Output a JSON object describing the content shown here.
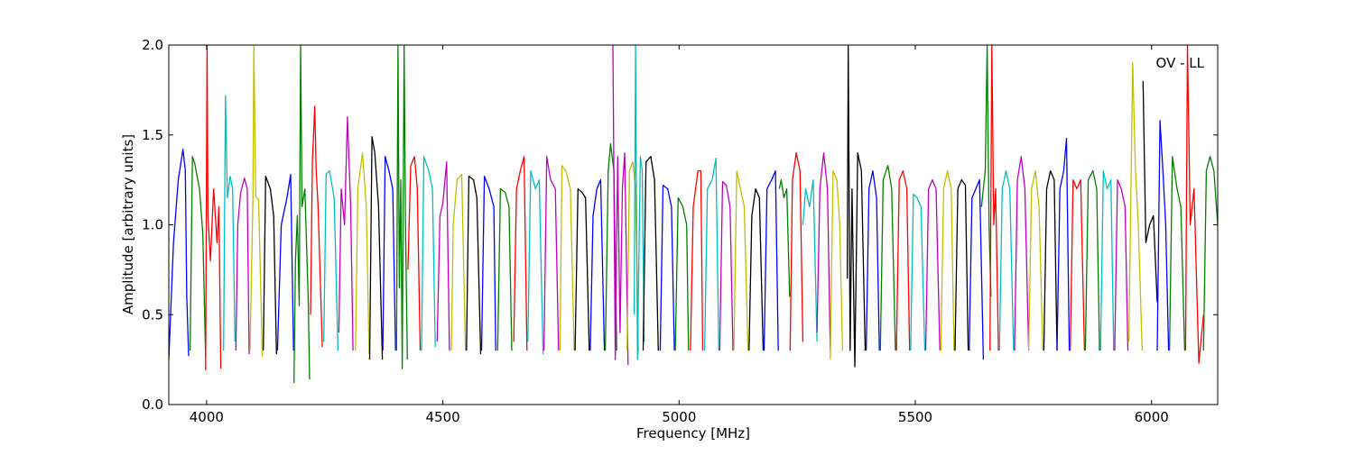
{
  "chart_data": {
    "type": "line",
    "title": "",
    "annotation": "OV - LL",
    "xlabel": "Frequency [MHz]",
    "ylabel": "Amplitude [arbitrary units]",
    "xlim": [
      3920,
      6140
    ],
    "ylim": [
      0.0,
      2.0
    ],
    "xticks": [
      4000,
      4500,
      5000,
      5500,
      6000
    ],
    "xtick_labels": [
      "4000",
      "4500",
      "5000",
      "5500",
      "6000"
    ],
    "yticks": [
      0.0,
      0.5,
      1.0,
      1.5,
      2.0
    ],
    "ytick_labels": [
      "0.0",
      "0.5",
      "1.0",
      "1.5",
      "2.0"
    ],
    "grid": false,
    "legend": "none",
    "color_cycle": [
      "#0000ff",
      "#007f00",
      "#ff0000",
      "#00bfbf",
      "#bf00bf",
      "#bfbf00",
      "#000000"
    ],
    "background_trace_color": "#c0c0c0",
    "series": [
      {
        "color": "#0000ff",
        "x": [
          3920,
          3930,
          3940,
          3950,
          3955,
          3958,
          3962
        ],
        "y": [
          0.25,
          0.9,
          1.25,
          1.42,
          1.3,
          0.6,
          0.27
        ]
      },
      {
        "color": "#007f00",
        "x": [
          3965,
          3970,
          3975,
          3985,
          3992,
          3998
        ],
        "y": [
          0.3,
          1.38,
          1.34,
          1.2,
          0.95,
          0.26
        ]
      },
      {
        "color": "#ff0000",
        "x": [
          3998,
          4001,
          4003,
          4008,
          4015,
          4022,
          4026,
          4030
        ],
        "y": [
          0.19,
          2.0,
          1.05,
          0.8,
          1.2,
          0.9,
          1.1,
          0.2
        ]
      },
      {
        "color": "#00bfbf",
        "x": [
          4036,
          4040,
          4044,
          4050,
          4055,
          4060
        ],
        "y": [
          0.3,
          1.72,
          1.15,
          1.27,
          1.2,
          0.35
        ]
      },
      {
        "color": "#bf00bf",
        "x": [
          4062,
          4066,
          4072,
          4080,
          4086,
          4090
        ],
        "y": [
          0.3,
          1.0,
          1.18,
          1.26,
          1.2,
          0.28
        ]
      },
      {
        "color": "#bfbf00",
        "x": [
          4092,
          4098,
          4100,
          4104,
          4110,
          4118
        ],
        "y": [
          0.3,
          1.15,
          2.0,
          1.16,
          1.14,
          0.27
        ]
      },
      {
        "color": "#000000",
        "x": [
          4120,
          4125,
          4135,
          4142,
          4148
        ],
        "y": [
          0.3,
          1.27,
          1.2,
          1.05,
          0.28
        ]
      },
      {
        "color": "#0000ff",
        "x": [
          4150,
          4158,
          4170,
          4178,
          4184
        ],
        "y": [
          0.3,
          1.0,
          1.15,
          1.28,
          0.3
        ]
      },
      {
        "color": "#007f00",
        "x": [
          4185,
          4188,
          4192,
          4196,
          4199,
          4202,
          4208,
          4215,
          4218
        ],
        "y": [
          0.12,
          0.8,
          1.05,
          0.55,
          2.0,
          1.1,
          1.2,
          0.6,
          0.14
        ]
      },
      {
        "color": "#ff0000",
        "x": [
          4220,
          4224,
          4229,
          4232,
          4236,
          4245
        ],
        "y": [
          0.5,
          1.35,
          1.66,
          1.3,
          1.1,
          0.32
        ]
      },
      {
        "color": "#00bfbf",
        "x": [
          4248,
          4253,
          4260,
          4270,
          4278
        ],
        "y": [
          0.35,
          1.28,
          1.3,
          1.15,
          0.3
        ]
      },
      {
        "color": "#bf00bf",
        "x": [
          4280,
          4285,
          4292,
          4298,
          4305,
          4310
        ],
        "y": [
          0.4,
          1.2,
          1.0,
          1.6,
          1.1,
          0.3
        ]
      },
      {
        "color": "#bfbf00",
        "x": [
          4315,
          4320,
          4330,
          4338,
          4344
        ],
        "y": [
          0.3,
          1.2,
          1.4,
          1.1,
          0.28
        ]
      },
      {
        "color": "#000000",
        "x": [
          4345,
          4350,
          4356,
          4364,
          4372
        ],
        "y": [
          0.25,
          1.49,
          1.4,
          1.1,
          0.25
        ]
      },
      {
        "color": "#0000ff",
        "x": [
          4373,
          4378,
          4386,
          4394,
          4400
        ],
        "y": [
          0.3,
          1.38,
          1.3,
          1.2,
          0.3
        ]
      },
      {
        "color": "#007f00",
        "x": [
          4402,
          4405,
          4408,
          4411,
          4414,
          4418,
          4421,
          4425
        ],
        "y": [
          0.3,
          2.0,
          0.65,
          1.25,
          0.2,
          2.0,
          1.0,
          0.25
        ]
      },
      {
        "color": "#ff0000",
        "x": [
          4426,
          4432,
          4440,
          4446,
          4452
        ],
        "y": [
          0.75,
          1.33,
          1.38,
          1.2,
          0.3
        ]
      },
      {
        "color": "#00bfbf",
        "x": [
          4455,
          4460,
          4470,
          4478,
          4484
        ],
        "y": [
          0.3,
          1.38,
          1.3,
          1.2,
          0.32
        ]
      },
      {
        "color": "#bf00bf",
        "x": [
          4488,
          4494,
          4500,
          4508,
          4514
        ],
        "y": [
          0.35,
          1.05,
          1.12,
          1.35,
          0.3
        ]
      },
      {
        "color": "#bfbf00",
        "x": [
          4518,
          4522,
          4530,
          4540,
          4548
        ],
        "y": [
          0.3,
          1.0,
          1.25,
          1.28,
          0.3
        ]
      },
      {
        "color": "#000000",
        "x": [
          4550,
          4555,
          4565,
          4572,
          4580
        ],
        "y": [
          0.3,
          1.27,
          1.25,
          1.15,
          0.28
        ]
      },
      {
        "color": "#0000ff",
        "x": [
          4582,
          4588,
          4598,
          4608,
          4612
        ],
        "y": [
          0.3,
          1.27,
          1.2,
          1.1,
          0.3
        ]
      },
      {
        "color": "#007f00",
        "x": [
          4616,
          4622,
          4632,
          4640,
          4646
        ],
        "y": [
          0.3,
          1.2,
          1.18,
          1.1,
          0.3
        ]
      },
      {
        "color": "#ff0000",
        "x": [
          4650,
          4656,
          4664,
          4672,
          4678
        ],
        "y": [
          0.35,
          1.2,
          1.3,
          1.38,
          0.3
        ]
      },
      {
        "color": "#00bfbf",
        "x": [
          4680,
          4686,
          4696,
          4704,
          4712
        ],
        "y": [
          0.35,
          1.3,
          1.2,
          1.25,
          0.28
        ]
      },
      {
        "color": "#bf00bf",
        "x": [
          4714,
          4720,
          4728,
          4738,
          4745
        ],
        "y": [
          0.3,
          1.38,
          1.25,
          1.2,
          0.3
        ]
      },
      {
        "color": "#bfbf00",
        "x": [
          4748,
          4752,
          4760,
          4770,
          4778
        ],
        "y": [
          0.3,
          1.33,
          1.3,
          1.2,
          0.3
        ]
      },
      {
        "color": "#000000",
        "x": [
          4780,
          4786,
          4795,
          4802,
          4810
        ],
        "y": [
          0.3,
          1.2,
          1.18,
          1.15,
          0.3
        ]
      },
      {
        "color": "#0000ff",
        "x": [
          4812,
          4818,
          4826,
          4834,
          4842
        ],
        "y": [
          0.3,
          1.05,
          1.2,
          1.25,
          0.3
        ]
      },
      {
        "color": "#007f00",
        "x": [
          4844,
          4850,
          4855,
          4862,
          4868
        ],
        "y": [
          0.3,
          1.3,
          1.45,
          1.3,
          0.3
        ]
      },
      {
        "color": "#bf00bf",
        "x": [
          4860,
          4865,
          4870,
          4875,
          4880,
          4885,
          4892
        ],
        "y": [
          2.0,
          0.25,
          1.38,
          0.4,
          1.2,
          1.4,
          0.22
        ]
      },
      {
        "color": "#bfbf00",
        "x": [
          4890,
          4895,
          4902,
          4908,
          4914
        ],
        "y": [
          0.3,
          1.3,
          1.35,
          1.2,
          0.28
        ]
      },
      {
        "color": "#00bfbf",
        "x": [
          4905,
          4908,
          4912,
          4918,
          4922,
          4926
        ],
        "y": [
          0.5,
          2.0,
          0.25,
          1.38,
          1.3,
          0.35
        ]
      },
      {
        "color": "#000000",
        "x": [
          4924,
          4930,
          4940,
          4948,
          4956
        ],
        "y": [
          0.3,
          1.35,
          1.38,
          1.25,
          0.3
        ]
      },
      {
        "color": "#0000ff",
        "x": [
          4960,
          4966,
          4976,
          4984,
          4990
        ],
        "y": [
          0.3,
          1.22,
          1.2,
          1.1,
          0.3
        ]
      },
      {
        "color": "#007f00",
        "x": [
          4992,
          4998,
          5008,
          5016,
          5020
        ],
        "y": [
          0.3,
          1.15,
          1.1,
          1.0,
          0.3
        ]
      },
      {
        "color": "#ff0000",
        "x": [
          5024,
          5030,
          5040,
          5046,
          5050
        ],
        "y": [
          0.3,
          1.1,
          1.3,
          1.3,
          0.3
        ]
      },
      {
        "color": "#00bfbf",
        "x": [
          5054,
          5060,
          5070,
          5078,
          5084
        ],
        "y": [
          0.3,
          1.2,
          1.25,
          1.37,
          0.3
        ]
      },
      {
        "color": "#bf00bf",
        "x": [
          5086,
          5092,
          5100,
          5108,
          5114
        ],
        "y": [
          0.3,
          1.24,
          1.22,
          1.1,
          0.3
        ]
      },
      {
        "color": "#bfbf00",
        "x": [
          5116,
          5122,
          5130,
          5138,
          5146
        ],
        "y": [
          0.3,
          1.3,
          1.2,
          1.1,
          0.3
        ]
      },
      {
        "color": "#000000",
        "x": [
          5148,
          5154,
          5162,
          5170,
          5178
        ],
        "y": [
          0.3,
          1.05,
          1.2,
          1.15,
          0.3
        ]
      },
      {
        "color": "#0000ff",
        "x": [
          5180,
          5186,
          5196,
          5204,
          5210
        ],
        "y": [
          0.3,
          1.2,
          1.25,
          1.3,
          0.3
        ]
      },
      {
        "color": "#007f00",
        "x": [
          5212,
          5216,
          5222,
          5228,
          5234
        ],
        "y": [
          1.2,
          1.25,
          1.15,
          1.2,
          0.6
        ]
      },
      {
        "color": "#ff0000",
        "x": [
          5235,
          5240,
          5248,
          5256,
          5262
        ],
        "y": [
          0.3,
          1.25,
          1.4,
          1.3,
          0.35
        ]
      },
      {
        "color": "#00bfbf",
        "x": [
          5262,
          5268,
          5276,
          5284,
          5292
        ],
        "y": [
          1.0,
          1.2,
          1.1,
          1.25,
          0.35
        ]
      },
      {
        "color": "#bf00bf",
        "x": [
          5292,
          5298,
          5306,
          5314,
          5320
        ],
        "y": [
          0.4,
          1.2,
          1.4,
          1.2,
          0.3
        ]
      },
      {
        "color": "#bfbf00",
        "x": [
          5320,
          5326,
          5334,
          5340,
          5346
        ],
        "y": [
          0.25,
          1.3,
          1.25,
          1.0,
          0.3
        ]
      },
      {
        "color": "#000000",
        "x": [
          5356,
          5358,
          5362,
          5366,
          5372,
          5378,
          5386,
          5394
        ],
        "y": [
          0.7,
          2.0,
          0.3,
          1.2,
          0.21,
          1.4,
          1.3,
          0.3
        ]
      },
      {
        "color": "#0000ff",
        "x": [
          5396,
          5402,
          5410,
          5418,
          5424
        ],
        "y": [
          0.3,
          1.2,
          1.3,
          1.15,
          0.3
        ]
      },
      {
        "color": "#007f00",
        "x": [
          5426,
          5432,
          5442,
          5450,
          5458
        ],
        "y": [
          0.3,
          1.25,
          1.33,
          1.2,
          0.3
        ]
      },
      {
        "color": "#ff0000",
        "x": [
          5460,
          5466,
          5474,
          5482,
          5488
        ],
        "y": [
          0.3,
          1.25,
          1.3,
          1.2,
          0.3
        ]
      },
      {
        "color": "#00bfbf",
        "x": [
          5490,
          5496,
          5504,
          5512,
          5520
        ],
        "y": [
          0.3,
          1.17,
          1.15,
          1.1,
          0.3
        ]
      },
      {
        "color": "#bf00bf",
        "x": [
          5522,
          5528,
          5536,
          5544,
          5552
        ],
        "y": [
          0.3,
          1.2,
          1.25,
          1.2,
          0.3
        ]
      },
      {
        "color": "#bfbf00",
        "x": [
          5554,
          5560,
          5568,
          5576,
          5582
        ],
        "y": [
          0.3,
          1.2,
          1.3,
          1.2,
          0.3
        ]
      },
      {
        "color": "#000000",
        "x": [
          5584,
          5590,
          5598,
          5606,
          5612
        ],
        "y": [
          0.3,
          1.2,
          1.25,
          1.22,
          0.3
        ]
      },
      {
        "color": "#0000ff",
        "x": [
          5614,
          5620,
          5628,
          5636,
          5644
        ],
        "y": [
          0.3,
          1.15,
          1.2,
          1.25,
          0.25
        ]
      },
      {
        "color": "#007f00",
        "x": [
          5640,
          5648,
          5652,
          5656,
          5660
        ],
        "y": [
          1.1,
          1.3,
          2.0,
          1.0,
          0.6
        ]
      },
      {
        "color": "#ff0000",
        "x": [
          5658,
          5662,
          5666,
          5670,
          5676
        ],
        "y": [
          0.3,
          2.0,
          1.0,
          1.2,
          0.3
        ]
      },
      {
        "color": "#00bfbf",
        "x": [
          5678,
          5684,
          5692,
          5700,
          5708
        ],
        "y": [
          0.3,
          1.2,
          1.3,
          1.2,
          0.3
        ]
      },
      {
        "color": "#bf00bf",
        "x": [
          5710,
          5716,
          5724,
          5732,
          5740
        ],
        "y": [
          0.3,
          1.25,
          1.38,
          1.2,
          0.3
        ]
      },
      {
        "color": "#bfbf00",
        "x": [
          5740,
          5746,
          5754,
          5762,
          5770
        ],
        "y": [
          0.3,
          1.2,
          1.3,
          1.1,
          0.3
        ]
      },
      {
        "color": "#000000",
        "x": [
          5772,
          5778,
          5786,
          5794,
          5800
        ],
        "y": [
          0.3,
          1.2,
          1.3,
          1.25,
          0.3
        ]
      },
      {
        "color": "#0000ff",
        "x": [
          5800,
          5806,
          5814,
          5820,
          5826
        ],
        "y": [
          0.3,
          1.2,
          1.3,
          1.48,
          0.3
        ]
      },
      {
        "color": "#ff0000",
        "x": [
          5828,
          5834,
          5842,
          5850,
          5858
        ],
        "y": [
          0.3,
          1.25,
          1.2,
          1.25,
          0.3
        ]
      },
      {
        "color": "#007f00",
        "x": [
          5860,
          5866,
          5876,
          5884,
          5890
        ],
        "y": [
          0.3,
          1.25,
          1.3,
          1.2,
          0.3
        ]
      },
      {
        "color": "#00bfbf",
        "x": [
          5892,
          5898,
          5906,
          5914,
          5920
        ],
        "y": [
          0.3,
          1.3,
          1.2,
          1.25,
          0.3
        ]
      },
      {
        "color": "#bf00bf",
        "x": [
          5922,
          5928,
          5936,
          5944,
          5950
        ],
        "y": [
          0.3,
          1.25,
          1.2,
          1.1,
          0.3
        ]
      },
      {
        "color": "#bfbf00",
        "x": [
          5952,
          5960,
          5966,
          5972,
          5980
        ],
        "y": [
          0.35,
          1.9,
          1.3,
          1.0,
          0.3
        ]
      },
      {
        "color": "#000000",
        "x": [
          5982,
          5988,
          5996,
          6004,
          6012
        ],
        "y": [
          1.8,
          0.9,
          1.0,
          1.05,
          0.57
        ]
      },
      {
        "color": "#0000ff",
        "x": [
          6012,
          6018,
          6024,
          6030,
          6036
        ],
        "y": [
          0.3,
          1.58,
          1.3,
          1.0,
          0.3
        ]
      },
      {
        "color": "#007f00",
        "x": [
          6038,
          6044,
          6054,
          6062,
          6070
        ],
        "y": [
          0.3,
          1.38,
          1.2,
          1.1,
          0.3
        ]
      },
      {
        "color": "#ff0000",
        "x": [
          6072,
          6076,
          6082,
          6090,
          6100,
          6110
        ],
        "y": [
          0.3,
          2.0,
          1.0,
          1.2,
          0.23,
          0.5
        ]
      },
      {
        "color": "#007f00",
        "x": [
          6110,
          6116,
          6124,
          6132,
          6140
        ],
        "y": [
          0.3,
          1.3,
          1.38,
          1.3,
          1.0
        ]
      }
    ]
  }
}
